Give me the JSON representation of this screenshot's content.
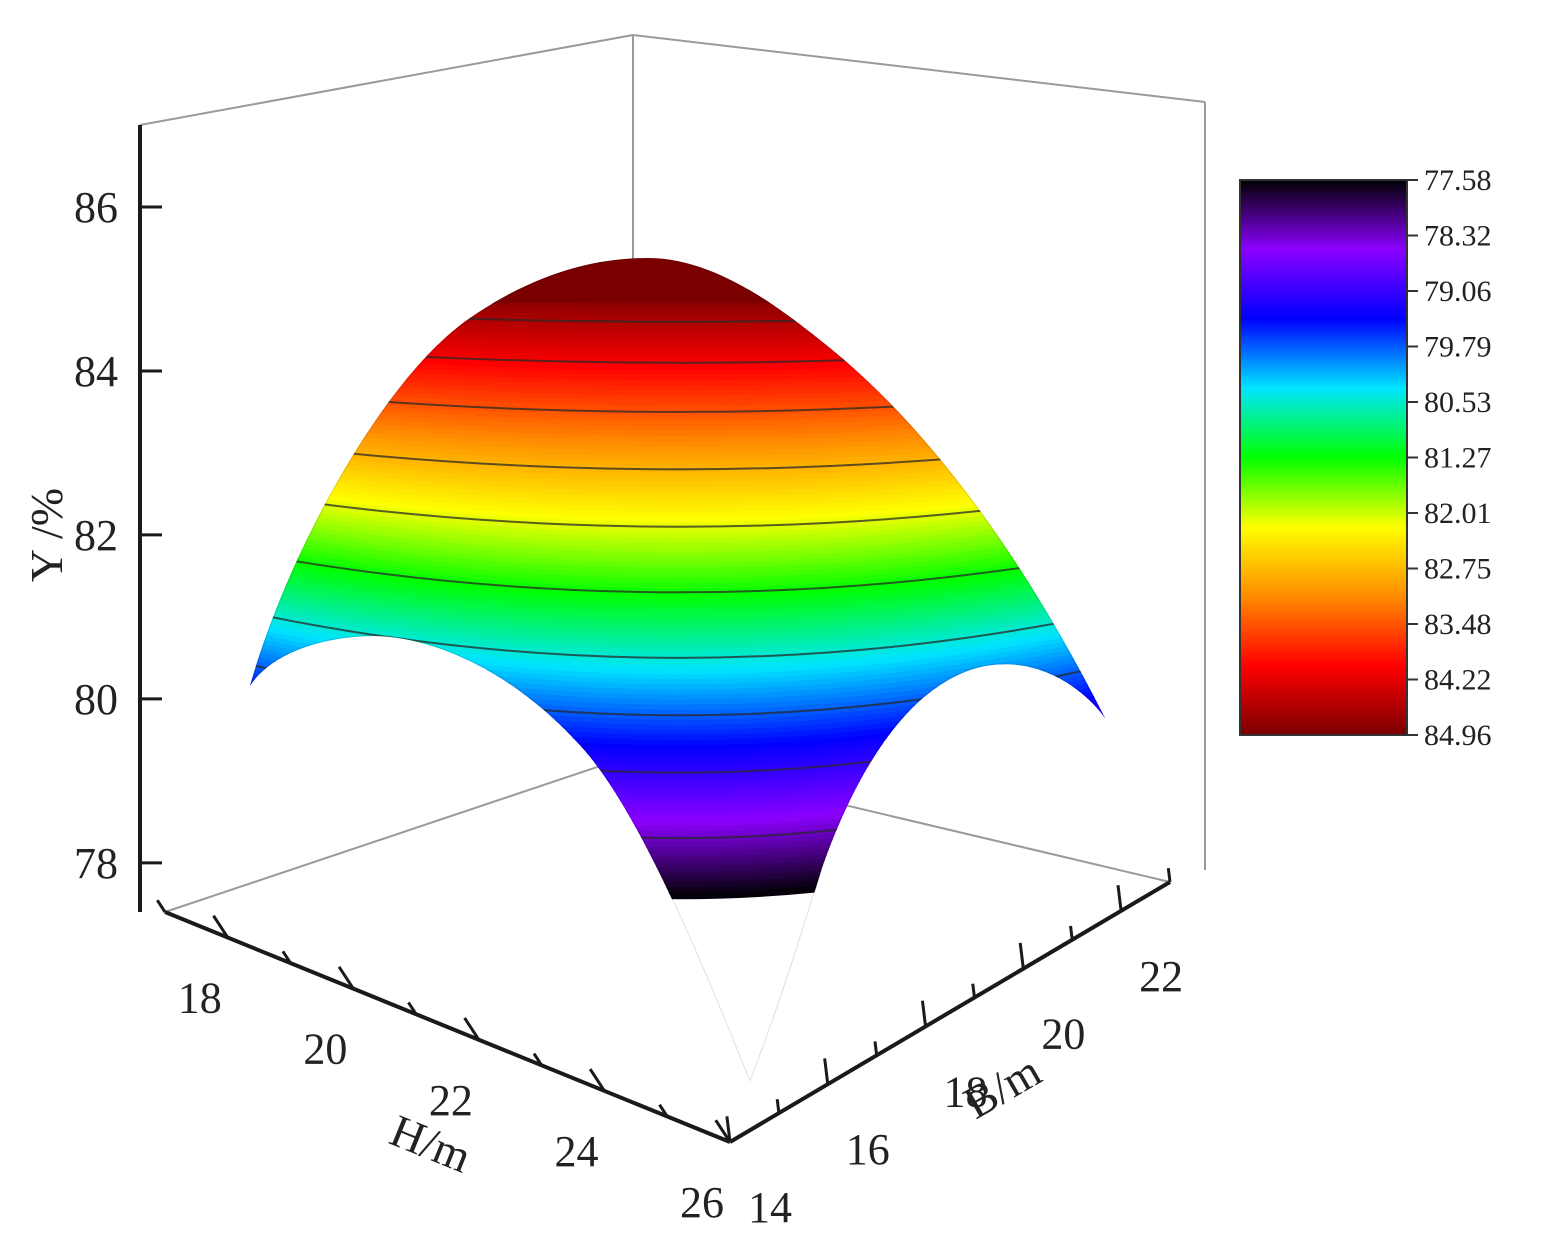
{
  "chart_data": {
    "type": "surface3d",
    "title": "",
    "xlabel": "H/m",
    "ylabel": "B/m",
    "zlabel": "Y /%",
    "x_ticks": [
      18,
      20,
      22,
      24,
      26
    ],
    "y_ticks": [
      14,
      16,
      18,
      20,
      22
    ],
    "z_ticks": [
      78,
      80,
      82,
      84,
      86
    ],
    "xlim": [
      17,
      26
    ],
    "ylim": [
      14,
      23
    ],
    "zlim": [
      77.4,
      87
    ],
    "surface": {
      "peak": {
        "H": 21.5,
        "B": 18.5,
        "Y": 85.0
      },
      "corners": [
        {
          "H": 26,
          "B": 14,
          "Y": 77.6
        },
        {
          "H": 17,
          "B": 14,
          "Y": 80.4
        },
        {
          "H": 26,
          "B": 23,
          "Y": 79.9
        }
      ]
    },
    "contour_levels": [
      84.6,
      84.1,
      83.5,
      82.8,
      82.1,
      81.3,
      80.5,
      79.8,
      79.1,
      78.3
    ],
    "colorbar": {
      "labels": [
        "77.58",
        "78.32",
        "79.06",
        "79.79",
        "80.53",
        "81.27",
        "82.01",
        "82.75",
        "83.48",
        "84.22",
        "84.96"
      ],
      "min": 77.58,
      "max": 84.96,
      "colors": [
        "#000000",
        "#8b00ff",
        "#0000ff",
        "#00e5ff",
        "#00ff00",
        "#ffff00",
        "#ff8c00",
        "#ff0000",
        "#7a0000"
      ]
    },
    "grid": false,
    "legend": "right"
  }
}
